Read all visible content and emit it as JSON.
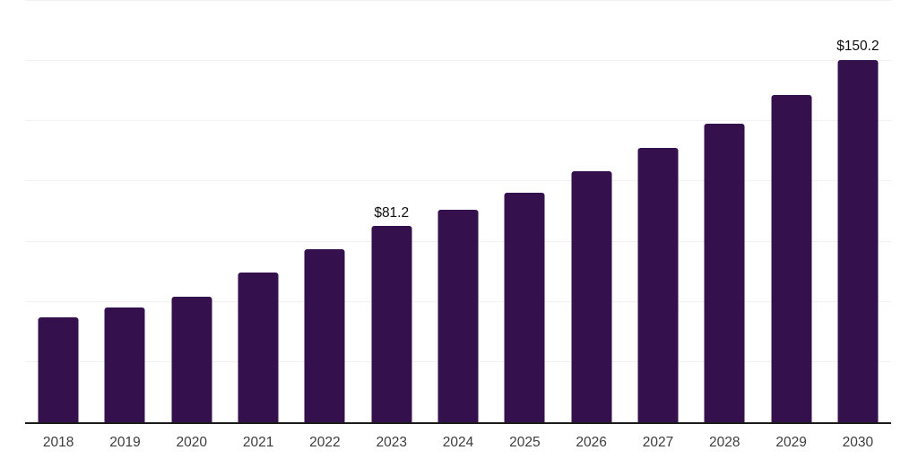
{
  "page": {
    "background": "#ffffff"
  },
  "colors": {
    "bar": "#34114C",
    "gridline": "#f1f1f1",
    "axis_line": "#1c1c1c",
    "tick_label": "#3d3d3d",
    "value_label": "#0e0e0e"
  },
  "chart_data": {
    "type": "bar",
    "title": "",
    "xlabel": "",
    "ylabel": "",
    "categories": [
      "2018",
      "2019",
      "2020",
      "2021",
      "2022",
      "2023",
      "2024",
      "2025",
      "2026",
      "2027",
      "2028",
      "2029",
      "2030"
    ],
    "values": [
      43.6,
      47.7,
      52.0,
      62.0,
      71.9,
      81.2,
      88.0,
      95.2,
      103.9,
      113.8,
      123.9,
      135.7,
      150.2
    ],
    "data_labels": {
      "2023": "$81.2",
      "2030": "$150.2"
    },
    "value_prefix": "$",
    "ylim": [
      0,
      175
    ],
    "grid_step": 25,
    "grid": "horizontal-only",
    "legend": "none",
    "y_axis_tick_labels_visible": false,
    "bar_color": "#34114C"
  }
}
